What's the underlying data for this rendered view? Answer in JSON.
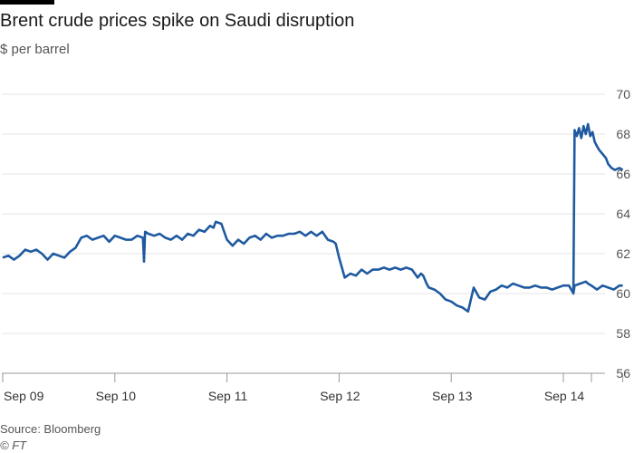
{
  "chart_data": {
    "type": "line",
    "title": "Brent crude prices spike on Saudi disruption",
    "subtitle": "$ per barrel",
    "ylim": [
      56,
      70
    ],
    "y_ticks": [
      56,
      58,
      60,
      62,
      64,
      66,
      68,
      70
    ],
    "x_ticks": [
      "Sep 09",
      "Sep 10",
      "Sep 11",
      "Sep 12",
      "Sep 13",
      "Sep 14"
    ],
    "x_range": [
      0,
      5.53
    ],
    "grid": true,
    "color": "#1f5aa0",
    "series": [
      {
        "x": [
          0,
          0.05,
          0.1,
          0.15,
          0.2,
          0.25,
          0.3,
          0.35,
          0.4,
          0.45,
          0.5,
          0.55,
          0.6,
          0.65,
          0.7,
          0.75,
          0.8,
          0.85,
          0.9,
          0.95,
          1.0,
          1.05,
          1.1,
          1.15,
          1.2,
          1.25,
          1.26,
          1.27,
          1.3,
          1.35,
          1.4,
          1.45,
          1.5,
          1.55,
          1.6,
          1.65,
          1.7,
          1.75,
          1.8,
          1.85,
          1.88,
          1.9,
          1.95,
          2.0,
          2.05,
          2.1,
          2.15,
          2.2,
          2.25,
          2.3,
          2.35,
          2.4,
          2.45,
          2.5,
          2.55,
          2.6,
          2.65,
          2.7,
          2.75,
          2.8,
          2.85,
          2.9,
          2.95,
          2.97,
          3.0,
          3.05,
          3.1,
          3.15,
          3.2,
          3.25,
          3.3,
          3.35,
          3.4,
          3.45,
          3.5,
          3.55,
          3.6,
          3.65,
          3.7,
          3.73,
          3.75,
          3.78,
          3.8,
          3.85,
          3.9,
          3.95,
          4.0,
          4.05,
          4.1,
          4.15,
          4.2,
          4.25,
          4.3,
          4.35,
          4.4,
          4.45,
          4.5,
          4.55,
          4.6,
          4.65,
          4.7,
          4.75,
          4.8,
          4.85,
          4.9,
          4.95,
          5.0,
          5.05,
          5.08,
          5.09,
          5.1,
          5.15,
          5.2,
          5.22,
          5.25,
          5.3,
          5.35,
          5.4,
          5.45,
          5.5,
          5.53
        ],
        "values": [
          61.8,
          61.9,
          61.7,
          61.9,
          62.2,
          62.1,
          62.2,
          62.0,
          61.7,
          62.0,
          61.9,
          61.8,
          62.1,
          62.3,
          62.8,
          62.9,
          62.7,
          62.8,
          62.9,
          62.6,
          62.9,
          62.8,
          62.7,
          62.7,
          62.9,
          62.8,
          61.6,
          63.1,
          63.0,
          62.9,
          63.0,
          62.8,
          62.7,
          62.9,
          62.7,
          63.0,
          62.9,
          63.2,
          63.1,
          63.4,
          63.3,
          63.6,
          63.5,
          62.7,
          62.4,
          62.7,
          62.5,
          62.8,
          62.9,
          62.7,
          63.0,
          62.8,
          62.9,
          62.9,
          63.0,
          63.0,
          63.1,
          62.9,
          63.1,
          62.9,
          63.1,
          62.7,
          62.6,
          62.5,
          61.8,
          60.8,
          61.0,
          60.9,
          61.2,
          61.0,
          61.2,
          61.2,
          61.3,
          61.2,
          61.3,
          61.2,
          61.3,
          61.2,
          60.8,
          61.0,
          60.9,
          60.5,
          60.3,
          60.2,
          60.0,
          59.7,
          59.6,
          59.4,
          59.3,
          59.1,
          60.3,
          59.8,
          59.7,
          60.1,
          60.2,
          60.4,
          60.3,
          60.5,
          60.4,
          60.3,
          60.3,
          60.4,
          60.3,
          60.3,
          60.2,
          60.3,
          60.4,
          60.4,
          60.1,
          60.0,
          60.4,
          60.5,
          60.6,
          60.5,
          60.4,
          60.2,
          60.4,
          60.3,
          60.2,
          60.4,
          60.4
        ],
        "values_note_removed": true
      }
    ],
    "source": "Source: Bloomberg",
    "copyright": "© FT"
  }
}
